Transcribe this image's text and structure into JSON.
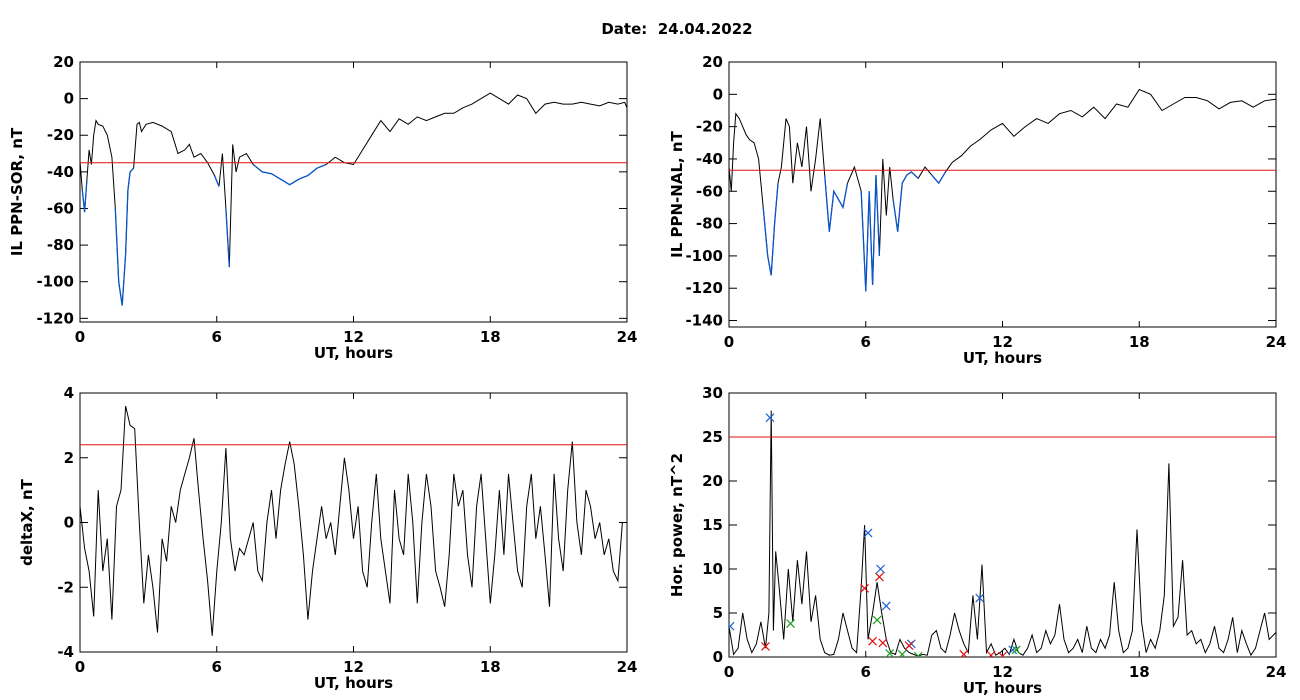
{
  "figure": {
    "title": "Date:  24.04.2022"
  },
  "chart_data": [
    {
      "type": "line",
      "xlabel": "UT, hours",
      "ylabel": "IL PPN-SOR, nT",
      "xlim": [
        0,
        24
      ],
      "ylim": [
        -122,
        20
      ],
      "xticks": [
        0,
        6,
        12,
        18,
        24
      ],
      "yticks": [
        20,
        0,
        -20,
        -40,
        -60,
        -80,
        -100,
        -120
      ],
      "threshold": -35,
      "colors": {
        "trace": "#000000",
        "highlight": "#0a55c8",
        "threshold": "#e01010"
      },
      "series": [
        {
          "x": [
            0,
            0.1,
            0.2,
            0.3,
            0.4,
            0.5,
            0.6,
            0.7,
            0.8,
            1.0,
            1.2,
            1.4,
            1.55,
            1.7,
            1.85,
            2.0,
            2.1,
            2.2,
            2.35,
            2.5,
            2.6,
            2.7,
            2.9,
            3.2,
            3.6,
            4.0,
            4.3,
            4.6,
            4.8,
            5.0,
            5.3,
            5.6,
            5.9,
            6.1,
            6.25,
            6.4,
            6.55,
            6.7,
            6.85,
            7.0,
            7.3,
            7.6,
            8.0,
            8.4,
            8.8,
            9.2,
            9.6,
            10.0,
            10.4,
            10.8,
            11.2,
            11.6,
            12.0,
            12.4,
            12.8,
            13.2,
            13.6,
            14.0,
            14.4,
            14.8,
            15.2,
            15.6,
            16.0,
            16.4,
            16.8,
            17.2,
            17.6,
            18.0,
            18.4,
            18.8,
            19.2,
            19.6,
            20.0,
            20.4,
            20.8,
            21.2,
            21.6,
            22.0,
            22.4,
            22.8,
            23.2,
            23.6,
            23.9,
            24.0
          ],
          "values": [
            -34,
            -50,
            -62,
            -45,
            -28,
            -36,
            -20,
            -12,
            -14,
            -15,
            -20,
            -32,
            -60,
            -100,
            -113,
            -85,
            -50,
            -40,
            -38,
            -14,
            -13,
            -18,
            -14,
            -13,
            -15,
            -18,
            -30,
            -28,
            -25,
            -32,
            -30,
            -35,
            -42,
            -48,
            -30,
            -60,
            -92,
            -25,
            -40,
            -32,
            -30,
            -36,
            -40,
            -41,
            -44,
            -47,
            -44,
            -42,
            -38,
            -36,
            -32,
            -35,
            -36,
            -28,
            -20,
            -12,
            -18,
            -11,
            -14,
            -10,
            -12,
            -10,
            -8,
            -8,
            -5,
            -3,
            0,
            3,
            0,
            -3,
            2,
            0,
            -8,
            -3,
            -2,
            -3,
            -3,
            -2,
            -3,
            -4,
            -2,
            -3,
            -2,
            -5
          ]
        }
      ]
    },
    {
      "type": "line",
      "xlabel": "UT, hours",
      "ylabel": "IL PPN-NAL, nT",
      "xlim": [
        0,
        24
      ],
      "ylim": [
        -144,
        20
      ],
      "xticks": [
        0,
        6,
        12,
        18,
        24
      ],
      "yticks": [
        20,
        0,
        -20,
        -40,
        -60,
        -80,
        -100,
        -120,
        -140
      ],
      "threshold": -47,
      "colors": {
        "trace": "#000000",
        "highlight": "#0a55c8",
        "threshold": "#e01010"
      },
      "series": [
        {
          "x": [
            0,
            0.1,
            0.2,
            0.3,
            0.45,
            0.6,
            0.75,
            0.9,
            1.1,
            1.3,
            1.5,
            1.7,
            1.85,
            2.0,
            2.15,
            2.3,
            2.5,
            2.65,
            2.8,
            3.0,
            3.2,
            3.4,
            3.6,
            3.8,
            4.0,
            4.2,
            4.4,
            4.6,
            4.8,
            5.0,
            5.2,
            5.5,
            5.8,
            6.0,
            6.15,
            6.3,
            6.45,
            6.6,
            6.75,
            6.9,
            7.05,
            7.2,
            7.4,
            7.6,
            7.8,
            8.0,
            8.3,
            8.6,
            8.9,
            9.2,
            9.5,
            9.8,
            10.2,
            10.6,
            11.0,
            11.5,
            12.0,
            12.5,
            13.0,
            13.5,
            14.0,
            14.5,
            15.0,
            15.5,
            16.0,
            16.5,
            17.0,
            17.5,
            18.0,
            18.5,
            19.0,
            19.5,
            20.0,
            20.5,
            21.0,
            21.5,
            22.0,
            22.5,
            23.0,
            23.5,
            24.0
          ],
          "values": [
            -45,
            -60,
            -30,
            -12,
            -15,
            -20,
            -25,
            -28,
            -30,
            -40,
            -70,
            -100,
            -112,
            -80,
            -55,
            -45,
            -15,
            -20,
            -55,
            -30,
            -45,
            -20,
            -60,
            -40,
            -15,
            -50,
            -85,
            -60,
            -65,
            -70,
            -55,
            -45,
            -60,
            -122,
            -60,
            -118,
            -50,
            -100,
            -40,
            -75,
            -45,
            -65,
            -85,
            -55,
            -50,
            -48,
            -52,
            -45,
            -50,
            -55,
            -48,
            -42,
            -38,
            -32,
            -28,
            -22,
            -18,
            -26,
            -20,
            -15,
            -18,
            -12,
            -10,
            -14,
            -8,
            -15,
            -6,
            -8,
            3,
            0,
            -10,
            -6,
            -2,
            -2,
            -4,
            -9,
            -5,
            -4,
            -8,
            -4,
            -3
          ]
        }
      ]
    },
    {
      "type": "line",
      "xlabel": "UT, hours",
      "ylabel": "deltaX, nT",
      "xlim": [
        0,
        24
      ],
      "ylim": [
        -4,
        4
      ],
      "xticks": [
        0,
        6,
        12,
        18,
        24
      ],
      "yticks": [
        4,
        2,
        0,
        -2,
        -4
      ],
      "threshold": 2.4,
      "colors": {
        "trace": "#000000",
        "threshold": "#e01010"
      },
      "series": [
        {
          "x": [
            0,
            0.2,
            0.4,
            0.6,
            0.8,
            1.0,
            1.2,
            1.4,
            1.6,
            1.8,
            2.0,
            2.2,
            2.4,
            2.6,
            2.8,
            3.0,
            3.2,
            3.4,
            3.6,
            3.8,
            4.0,
            4.2,
            4.4,
            4.6,
            4.8,
            5.0,
            5.2,
            5.4,
            5.6,
            5.8,
            6.0,
            6.2,
            6.4,
            6.6,
            6.8,
            7.0,
            7.2,
            7.4,
            7.6,
            7.8,
            8.0,
            8.2,
            8.4,
            8.6,
            8.8,
            9.0,
            9.2,
            9.4,
            9.6,
            9.8,
            10.0,
            10.2,
            10.4,
            10.6,
            10.8,
            11.0,
            11.2,
            11.4,
            11.6,
            11.8,
            12.0,
            12.2,
            12.4,
            12.6,
            12.8,
            13.0,
            13.2,
            13.4,
            13.6,
            13.8,
            14.0,
            14.2,
            14.4,
            14.6,
            14.8,
            15.0,
            15.2,
            15.4,
            15.6,
            15.8,
            16.0,
            16.2,
            16.4,
            16.6,
            16.8,
            17.0,
            17.2,
            17.4,
            17.6,
            17.8,
            18.0,
            18.2,
            18.4,
            18.6,
            18.8,
            19.0,
            19.2,
            19.4,
            19.6,
            19.8,
            20.0,
            20.2,
            20.4,
            20.6,
            20.8,
            21.0,
            21.2,
            21.4,
            21.6,
            21.8,
            22.0,
            22.2,
            22.4,
            22.6,
            22.8,
            23.0,
            23.2,
            23.4,
            23.6,
            23.8,
            24.0
          ],
          "values": [
            0.5,
            -0.8,
            -1.5,
            -2.9,
            1.0,
            -1.5,
            -0.5,
            -3.0,
            0.5,
            1.0,
            3.6,
            3.0,
            2.9,
            0.0,
            -2.5,
            -1.0,
            -2.0,
            -3.4,
            -0.5,
            -1.2,
            0.5,
            0.0,
            1.0,
            1.5,
            2.0,
            2.6,
            1.0,
            -0.5,
            -1.8,
            -3.5,
            -1.5,
            0.0,
            2.3,
            -0.5,
            -1.5,
            -0.8,
            -1.0,
            -0.5,
            0.0,
            -1.5,
            -1.8,
            0.0,
            1.0,
            -0.5,
            1.0,
            1.8,
            2.5,
            1.8,
            0.5,
            -1.0,
            -3.0,
            -1.5,
            -0.5,
            0.5,
            -0.5,
            0.0,
            -1.0,
            0.5,
            2.0,
            1.0,
            -0.5,
            0.5,
            -1.5,
            -2.0,
            0.0,
            1.5,
            -0.5,
            -1.5,
            -2.5,
            1.0,
            -0.5,
            -1.0,
            1.5,
            0.0,
            -2.5,
            0.0,
            1.5,
            0.5,
            -1.5,
            -2.0,
            -2.6,
            -1.0,
            1.5,
            0.5,
            1.0,
            -1.0,
            -2.0,
            0.5,
            1.5,
            -0.5,
            -2.5,
            -1.0,
            1.0,
            -1.0,
            1.5,
            0.0,
            -1.5,
            -2.0,
            0.5,
            1.5,
            -0.5,
            0.5,
            -1.0,
            -2.6,
            1.5,
            -0.5,
            -1.5,
            1.0,
            2.5,
            0.0,
            -1.0,
            1.0,
            0.5,
            -0.5,
            0.0,
            -1.0,
            -0.5,
            -1.5,
            -1.8,
            0.0,
            0.0
          ]
        }
      ]
    },
    {
      "type": "line",
      "xlabel": "UT, hours",
      "ylabel": "Hor. power, nT^2",
      "xlim": [
        0,
        24
      ],
      "ylim": [
        0,
        30
      ],
      "xticks": [
        0,
        6,
        12,
        18,
        24
      ],
      "yticks": [
        30,
        25,
        20,
        15,
        10,
        5,
        0
      ],
      "threshold": 25,
      "colors": {
        "trace": "#000000",
        "threshold": "#e01010",
        "markers": {
          "blue": "#1f5fd6",
          "red": "#e01010",
          "green": "#1aa01a"
        }
      },
      "series": [
        {
          "x": [
            0,
            0.2,
            0.4,
            0.6,
            0.8,
            1.0,
            1.2,
            1.4,
            1.6,
            1.75,
            1.85,
            1.95,
            2.05,
            2.2,
            2.4,
            2.6,
            2.8,
            3.0,
            3.2,
            3.4,
            3.6,
            3.8,
            4.0,
            4.2,
            4.4,
            4.6,
            4.8,
            5.0,
            5.2,
            5.4,
            5.6,
            5.8,
            5.95,
            6.1,
            6.3,
            6.5,
            6.7,
            6.9,
            7.1,
            7.3,
            7.5,
            7.7,
            7.9,
            8.1,
            8.3,
            8.5,
            8.7,
            8.9,
            9.1,
            9.3,
            9.5,
            9.7,
            9.9,
            10.1,
            10.3,
            10.5,
            10.7,
            10.9,
            11.1,
            11.3,
            11.5,
            11.7,
            11.9,
            12.1,
            12.3,
            12.5,
            12.7,
            12.9,
            13.1,
            13.3,
            13.5,
            13.7,
            13.9,
            14.1,
            14.3,
            14.5,
            14.7,
            14.9,
            15.1,
            15.3,
            15.5,
            15.7,
            15.9,
            16.1,
            16.3,
            16.5,
            16.7,
            16.9,
            17.1,
            17.3,
            17.5,
            17.7,
            17.9,
            18.1,
            18.3,
            18.5,
            18.7,
            18.9,
            19.1,
            19.3,
            19.5,
            19.7,
            19.9,
            20.1,
            20.3,
            20.5,
            20.7,
            20.9,
            21.1,
            21.3,
            21.5,
            21.7,
            21.9,
            22.1,
            22.3,
            22.5,
            22.7,
            22.9,
            23.1,
            23.3,
            23.5,
            23.7,
            24.0
          ],
          "values": [
            3.5,
            0.3,
            1.0,
            5.0,
            2.0,
            0.5,
            1.5,
            4.0,
            1.0,
            5.0,
            28.0,
            3.0,
            12.0,
            8.0,
            2.0,
            10.0,
            4.0,
            11.0,
            6.0,
            12.0,
            4.0,
            7.0,
            2.0,
            0.5,
            0.2,
            0.3,
            2.0,
            5.0,
            3.0,
            1.0,
            0.5,
            8.0,
            15.0,
            2.0,
            5.0,
            8.5,
            5.0,
            2.0,
            0.5,
            0.3,
            2.0,
            1.0,
            0.5,
            0.3,
            0.1,
            0.3,
            0.2,
            2.5,
            3.0,
            1.0,
            0.5,
            2.5,
            5.0,
            3.0,
            1.5,
            0.5,
            7.0,
            2.0,
            10.5,
            0.5,
            1.5,
            0.2,
            0.5,
            1.0,
            0.3,
            2.0,
            0.5,
            0.2,
            1.0,
            2.5,
            0.5,
            1.0,
            3.0,
            1.5,
            2.5,
            6.0,
            2.0,
            0.5,
            1.0,
            2.0,
            0.5,
            3.5,
            1.0,
            0.5,
            2.0,
            1.0,
            2.5,
            8.5,
            3.0,
            0.5,
            1.0,
            3.0,
            14.5,
            4.0,
            0.5,
            2.0,
            1.0,
            3.0,
            7.0,
            22.0,
            3.5,
            4.5,
            11.0,
            2.5,
            3.0,
            1.5,
            2.0,
            0.5,
            1.5,
            3.5,
            1.0,
            0.5,
            2.0,
            4.5,
            0.5,
            3.0,
            1.5,
            0.2,
            1.0,
            3.0,
            5.0,
            2.0,
            2.8
          ]
        }
      ],
      "markers": [
        {
          "color": "blue",
          "points": [
            [
              0.05,
              3.5
            ],
            [
              1.8,
              27.2
            ],
            [
              6.1,
              14.1
            ],
            [
              6.65,
              10.0
            ],
            [
              6.9,
              5.8
            ],
            [
              8.0,
              1.5
            ],
            [
              11.0,
              6.7
            ],
            [
              12.45,
              0.8
            ]
          ]
        },
        {
          "color": "red",
          "points": [
            [
              1.6,
              1.2
            ],
            [
              5.95,
              7.8
            ],
            [
              6.3,
              1.8
            ],
            [
              6.6,
              9.1
            ],
            [
              6.75,
              1.6
            ],
            [
              7.9,
              1.3
            ],
            [
              10.3,
              0.3
            ],
            [
              11.5,
              0.2
            ],
            [
              12.0,
              0.1
            ]
          ]
        },
        {
          "color": "green",
          "points": [
            [
              2.7,
              3.8
            ],
            [
              6.5,
              4.2
            ],
            [
              7.05,
              0.4
            ],
            [
              7.6,
              0.3
            ],
            [
              8.3,
              0.1
            ],
            [
              12.6,
              0.8
            ]
          ]
        }
      ]
    }
  ]
}
